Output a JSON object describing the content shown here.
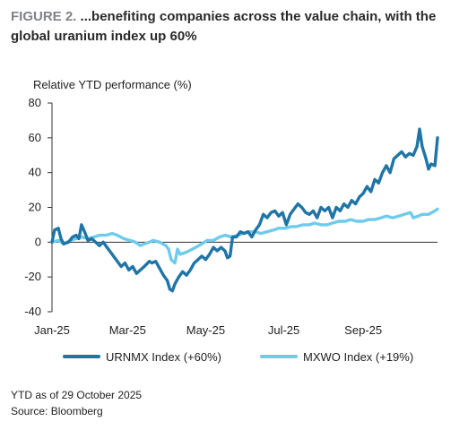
{
  "figure": {
    "label": "FIGURE 2.",
    "title": " ...benefiting companies across the value chain, with the global uranium index up 60%"
  },
  "footer": {
    "note": "YTD as of 29 October 2025",
    "source": "Source: Bloomberg"
  },
  "colors": {
    "urnmx": "#1f75a6",
    "mxwo": "#6fcbeb",
    "axis": "#333333"
  },
  "chart_data": {
    "type": "line",
    "ylabel": "Relative YTD performance (%)",
    "xlabel": "",
    "ylim": [
      -40,
      80
    ],
    "yticks": [
      80,
      60,
      40,
      20,
      0,
      -20,
      -40
    ],
    "x_range": [
      "2025-01-01",
      "2025-10-29"
    ],
    "xticks": [
      "Jan-25",
      "Mar-25",
      "May-25",
      "Jul-25",
      "Sep-25"
    ],
    "grid": false,
    "legend_position": "bottom",
    "series": [
      {
        "name": "URNMX Index (+60%)",
        "color": "#1f75a6",
        "points": [
          [
            "2025-01-01",
            0
          ],
          [
            "2025-01-03",
            7
          ],
          [
            "2025-01-06",
            8
          ],
          [
            "2025-01-08",
            2
          ],
          [
            "2025-01-10",
            -1
          ],
          [
            "2025-01-14",
            0
          ],
          [
            "2025-01-17",
            3
          ],
          [
            "2025-01-20",
            4
          ],
          [
            "2025-01-22",
            2
          ],
          [
            "2025-01-24",
            10
          ],
          [
            "2025-01-27",
            5
          ],
          [
            "2025-01-29",
            1
          ],
          [
            "2025-02-01",
            2
          ],
          [
            "2025-02-04",
            0
          ],
          [
            "2025-02-07",
            -2
          ],
          [
            "2025-02-10",
            0
          ],
          [
            "2025-02-13",
            -3
          ],
          [
            "2025-02-17",
            -7
          ],
          [
            "2025-02-20",
            -10
          ],
          [
            "2025-02-24",
            -14
          ],
          [
            "2025-02-27",
            -12
          ],
          [
            "2025-03-02",
            -16
          ],
          [
            "2025-03-05",
            -14
          ],
          [
            "2025-03-08",
            -18
          ],
          [
            "2025-03-11",
            -16
          ],
          [
            "2025-03-14",
            -14
          ],
          [
            "2025-03-18",
            -11
          ],
          [
            "2025-03-20",
            -12
          ],
          [
            "2025-03-23",
            -11
          ],
          [
            "2025-03-26",
            -15
          ],
          [
            "2025-03-29",
            -19
          ],
          [
            "2025-04-01",
            -22
          ],
          [
            "2025-04-03",
            -27
          ],
          [
            "2025-04-05",
            -28
          ],
          [
            "2025-04-07",
            -24
          ],
          [
            "2025-04-10",
            -20
          ],
          [
            "2025-04-13",
            -17
          ],
          [
            "2025-04-16",
            -19
          ],
          [
            "2025-04-19",
            -16
          ],
          [
            "2025-04-22",
            -12
          ],
          [
            "2025-04-25",
            -10
          ],
          [
            "2025-04-28",
            -8
          ],
          [
            "2025-05-01",
            -10
          ],
          [
            "2025-05-04",
            -7
          ],
          [
            "2025-05-07",
            -3
          ],
          [
            "2025-05-10",
            -5
          ],
          [
            "2025-05-13",
            -3
          ],
          [
            "2025-05-16",
            -5
          ],
          [
            "2025-05-18",
            -9
          ],
          [
            "2025-05-20",
            -8
          ],
          [
            "2025-05-22",
            3
          ],
          [
            "2025-05-25",
            3
          ],
          [
            "2025-05-28",
            6
          ],
          [
            "2025-05-31",
            5
          ],
          [
            "2025-06-03",
            6
          ],
          [
            "2025-06-06",
            3
          ],
          [
            "2025-06-09",
            7
          ],
          [
            "2025-06-12",
            10
          ],
          [
            "2025-06-15",
            16
          ],
          [
            "2025-06-18",
            14
          ],
          [
            "2025-06-21",
            17
          ],
          [
            "2025-06-24",
            18
          ],
          [
            "2025-06-27",
            15
          ],
          [
            "2025-06-30",
            17
          ],
          [
            "2025-07-03",
            10
          ],
          [
            "2025-07-06",
            16
          ],
          [
            "2025-07-09",
            19
          ],
          [
            "2025-07-12",
            22
          ],
          [
            "2025-07-15",
            20
          ],
          [
            "2025-07-18",
            17
          ],
          [
            "2025-07-21",
            16
          ],
          [
            "2025-07-24",
            18
          ],
          [
            "2025-07-27",
            14
          ],
          [
            "2025-07-30",
            20
          ],
          [
            "2025-08-02",
            18
          ],
          [
            "2025-08-05",
            20
          ],
          [
            "2025-08-08",
            14
          ],
          [
            "2025-08-11",
            20
          ],
          [
            "2025-08-14",
            18
          ],
          [
            "2025-08-17",
            22
          ],
          [
            "2025-08-20",
            20
          ],
          [
            "2025-08-23",
            24
          ],
          [
            "2025-08-26",
            22
          ],
          [
            "2025-08-29",
            26
          ],
          [
            "2025-09-01",
            28
          ],
          [
            "2025-09-04",
            32
          ],
          [
            "2025-09-07",
            29
          ],
          [
            "2025-09-10",
            36
          ],
          [
            "2025-09-13",
            34
          ],
          [
            "2025-09-16",
            40
          ],
          [
            "2025-09-19",
            44
          ],
          [
            "2025-09-22",
            40
          ],
          [
            "2025-09-25",
            48
          ],
          [
            "2025-09-28",
            50
          ],
          [
            "2025-10-01",
            52
          ],
          [
            "2025-10-04",
            49
          ],
          [
            "2025-10-07",
            51
          ],
          [
            "2025-10-10",
            50
          ],
          [
            "2025-10-13",
            55
          ],
          [
            "2025-10-15",
            65
          ],
          [
            "2025-10-17",
            55
          ],
          [
            "2025-10-20",
            48
          ],
          [
            "2025-10-22",
            42
          ],
          [
            "2025-10-24",
            45
          ],
          [
            "2025-10-27",
            44
          ],
          [
            "2025-10-29",
            60
          ]
        ]
      },
      {
        "name": "MXWO Index (+19%)",
        "color": "#6fcbeb",
        "points": [
          [
            "2025-01-01",
            0
          ],
          [
            "2025-01-06",
            1
          ],
          [
            "2025-01-10",
            -1
          ],
          [
            "2025-01-15",
            1
          ],
          [
            "2025-01-20",
            2
          ],
          [
            "2025-01-24",
            3
          ],
          [
            "2025-01-29",
            2
          ],
          [
            "2025-02-03",
            3
          ],
          [
            "2025-02-07",
            4
          ],
          [
            "2025-02-12",
            4
          ],
          [
            "2025-02-17",
            5
          ],
          [
            "2025-02-21",
            4
          ],
          [
            "2025-02-26",
            2
          ],
          [
            "2025-03-03",
            1
          ],
          [
            "2025-03-07",
            0
          ],
          [
            "2025-03-11",
            -2
          ],
          [
            "2025-03-14",
            -1
          ],
          [
            "2025-03-18",
            0
          ],
          [
            "2025-03-21",
            1
          ],
          [
            "2025-03-26",
            0
          ],
          [
            "2025-03-31",
            -2
          ],
          [
            "2025-04-02",
            -4
          ],
          [
            "2025-04-04",
            -10
          ],
          [
            "2025-04-07",
            -12
          ],
          [
            "2025-04-09",
            -4
          ],
          [
            "2025-04-11",
            -7
          ],
          [
            "2025-04-15",
            -6
          ],
          [
            "2025-04-18",
            -5
          ],
          [
            "2025-04-23",
            -3
          ],
          [
            "2025-04-28",
            -1
          ],
          [
            "2025-05-02",
            1
          ],
          [
            "2025-05-07",
            1
          ],
          [
            "2025-05-12",
            3
          ],
          [
            "2025-05-16",
            4
          ],
          [
            "2025-05-21",
            3
          ],
          [
            "2025-05-26",
            4
          ],
          [
            "2025-05-30",
            5
          ],
          [
            "2025-06-04",
            6
          ],
          [
            "2025-06-09",
            6
          ],
          [
            "2025-06-13",
            5
          ],
          [
            "2025-06-18",
            6
          ],
          [
            "2025-06-23",
            7
          ],
          [
            "2025-06-27",
            8
          ],
          [
            "2025-07-02",
            8
          ],
          [
            "2025-07-07",
            9
          ],
          [
            "2025-07-11",
            9
          ],
          [
            "2025-07-16",
            10
          ],
          [
            "2025-07-21",
            10
          ],
          [
            "2025-07-25",
            11
          ],
          [
            "2025-07-30",
            10
          ],
          [
            "2025-08-04",
            10
          ],
          [
            "2025-08-08",
            11
          ],
          [
            "2025-08-13",
            12
          ],
          [
            "2025-08-18",
            12
          ],
          [
            "2025-08-22",
            13
          ],
          [
            "2025-08-27",
            12
          ],
          [
            "2025-09-01",
            12
          ],
          [
            "2025-09-05",
            13
          ],
          [
            "2025-09-10",
            13
          ],
          [
            "2025-09-15",
            14
          ],
          [
            "2025-09-19",
            15
          ],
          [
            "2025-09-24",
            14
          ],
          [
            "2025-09-29",
            15
          ],
          [
            "2025-10-03",
            16
          ],
          [
            "2025-10-08",
            17
          ],
          [
            "2025-10-10",
            14
          ],
          [
            "2025-10-14",
            15
          ],
          [
            "2025-10-17",
            16
          ],
          [
            "2025-10-22",
            16
          ],
          [
            "2025-10-27",
            18
          ],
          [
            "2025-10-29",
            19
          ]
        ]
      }
    ]
  }
}
